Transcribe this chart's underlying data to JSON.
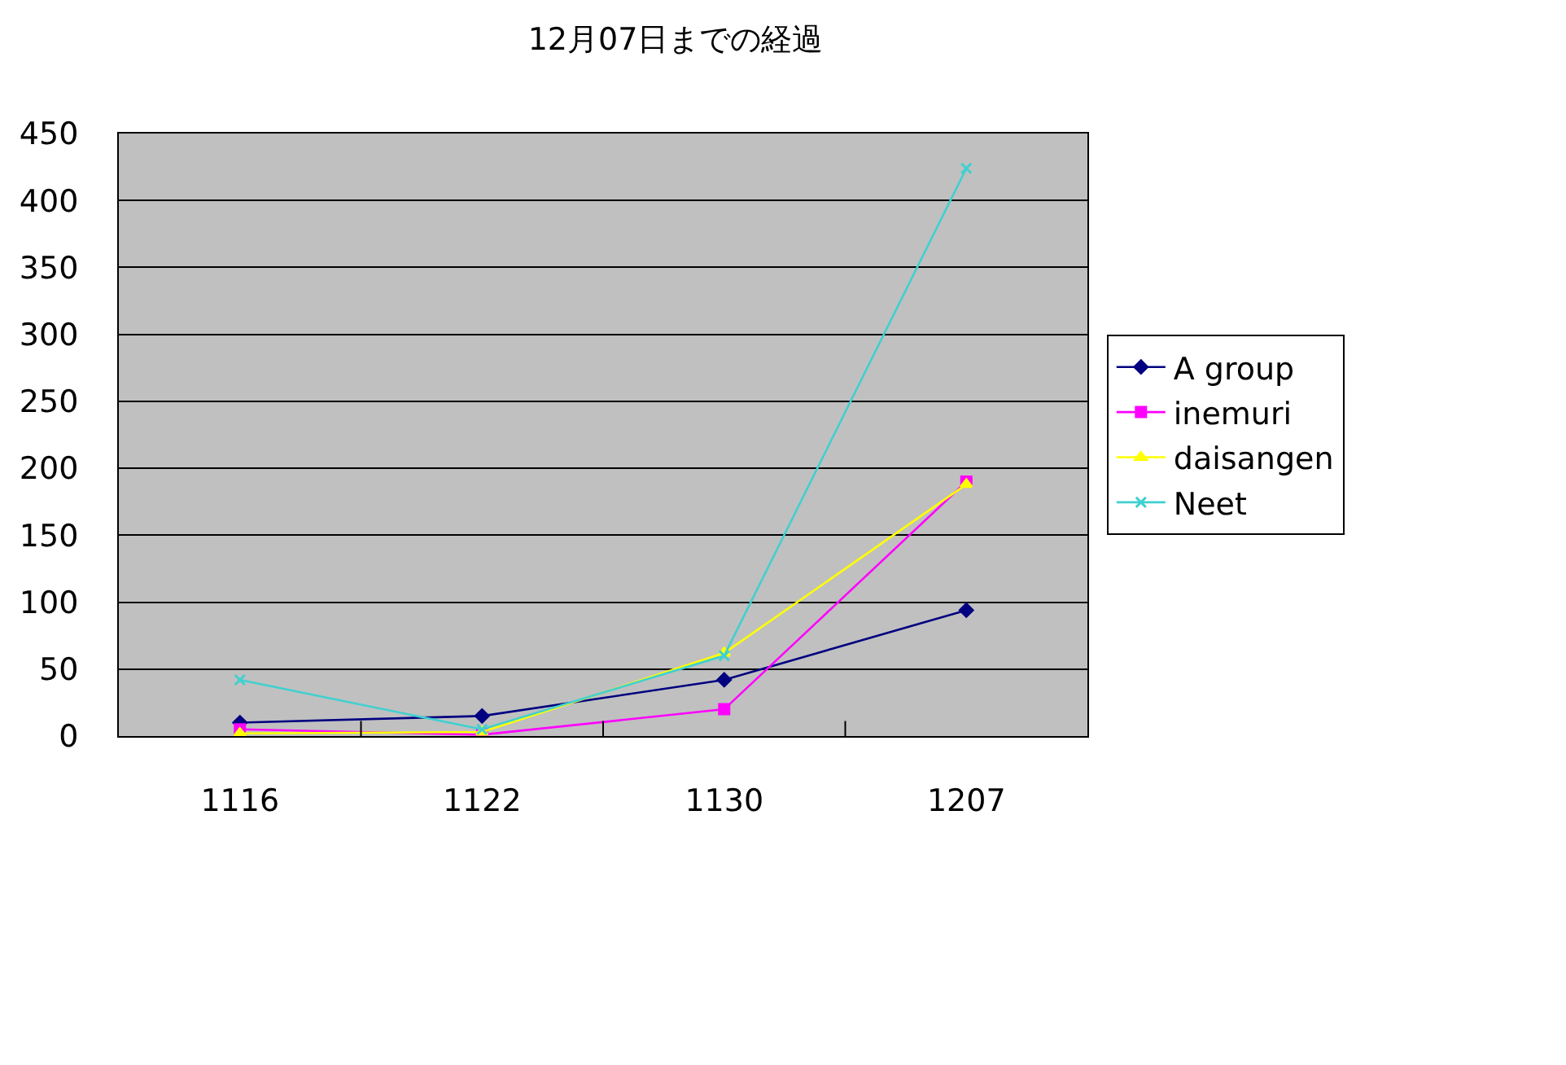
{
  "chart_data": {
    "type": "line",
    "title": "12月07日までの経過",
    "categories": [
      "1116",
      "1122",
      "1130",
      "1207"
    ],
    "series": [
      {
        "name": "A group",
        "color": "#000080",
        "marker": "diamond",
        "values": [
          10,
          15,
          42,
          94
        ]
      },
      {
        "name": "inemuri",
        "color": "#ff00ff",
        "marker": "square",
        "values": [
          5,
          1,
          20,
          190
        ]
      },
      {
        "name": "daisangen",
        "color": "#ffff00",
        "marker": "triangle",
        "values": [
          2,
          3,
          62,
          188
        ]
      },
      {
        "name": "Neet",
        "color": "#40d0d0",
        "marker": "cross",
        "values": [
          42,
          5,
          60,
          424
        ]
      }
    ],
    "ylim": [
      0,
      450
    ],
    "yticks": [
      0,
      50,
      100,
      150,
      200,
      250,
      300,
      350,
      400,
      450
    ],
    "grid": "y",
    "legend": "right",
    "line_style": "solid"
  }
}
